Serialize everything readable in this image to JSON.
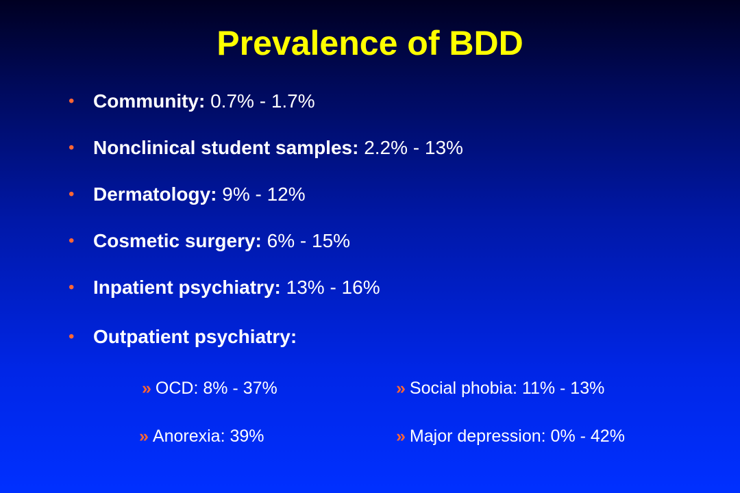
{
  "slide": {
    "title": "Prevalence of BDD",
    "colors": {
      "title": "#ffff00",
      "bullet_marker": "#ff6633",
      "text": "#ffffff",
      "background_top": "#000022",
      "background_bottom": "#0030ff"
    },
    "bullet_symbol": "•",
    "bullets": [
      {
        "label": "Community:",
        "value": "0.7% - 1.7%"
      },
      {
        "label": "Nonclinical student samples:",
        "value": "2.2% - 13%"
      },
      {
        "label": "Dermatology:",
        "value": "9% - 12%"
      },
      {
        "label": "Cosmetic surgery:",
        "value": "6% - 15%"
      },
      {
        "label": "Inpatient psychiatry:",
        "value": "13% - 16%"
      },
      {
        "label": "Outpatient psychiatry:",
        "value": ""
      }
    ],
    "sub_marker": "»",
    "sub_bullets": [
      {
        "text": "OCD: 8% - 37%"
      },
      {
        "text": "Social phobia: 11% - 13%"
      },
      {
        "text": "Anorexia: 39%"
      },
      {
        "text": "Major depression: 0% - 42%"
      }
    ]
  }
}
